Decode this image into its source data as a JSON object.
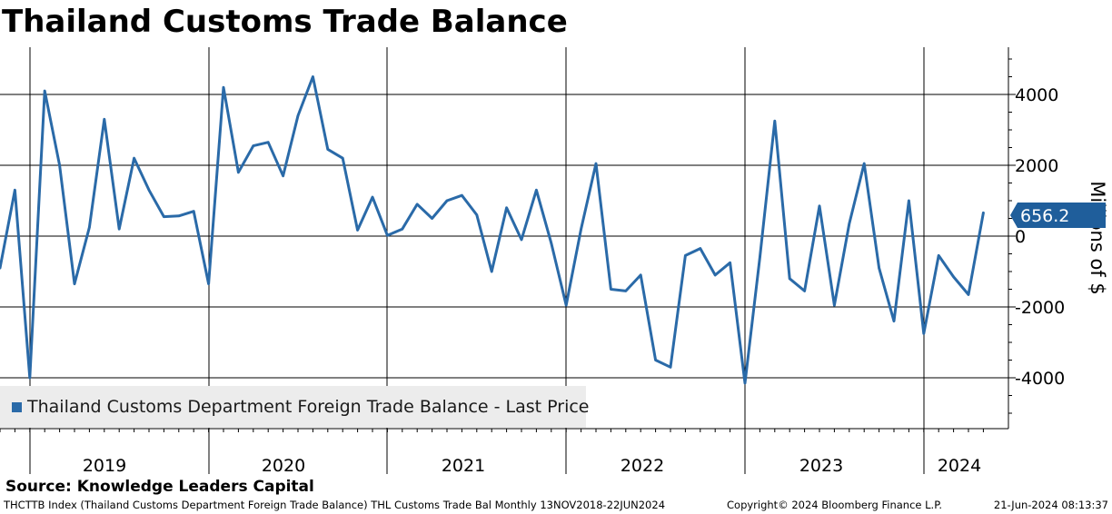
{
  "chart_data": {
    "type": "line",
    "title": "Thailand Customs Trade Balance",
    "ylabel": "Millions of $",
    "ylim": [
      -5400,
      5300
    ],
    "yticks": [
      -4000,
      -2000,
      0,
      2000,
      4000
    ],
    "ytick_labels": [
      "-4000",
      "-2000",
      "0",
      "2000",
      "4000"
    ],
    "year_labels": [
      "2019",
      "2020",
      "2021",
      "2022",
      "2023",
      "2024"
    ],
    "grid": true,
    "legend_position": "bottom-left",
    "series": [
      {
        "name": "Thailand Customs Department Foreign Trade Balance - Last Price",
        "color": "#2a6aa8",
        "x": [
          "2018-11",
          "2018-12",
          "2019-01",
          "2019-02",
          "2019-03",
          "2019-04",
          "2019-05",
          "2019-06",
          "2019-07",
          "2019-08",
          "2019-09",
          "2019-10",
          "2019-11",
          "2019-12",
          "2020-01",
          "2020-02",
          "2020-03",
          "2020-04",
          "2020-05",
          "2020-06",
          "2020-07",
          "2020-08",
          "2020-09",
          "2020-10",
          "2020-11",
          "2020-12",
          "2021-01",
          "2021-02",
          "2021-03",
          "2021-04",
          "2021-05",
          "2021-06",
          "2021-07",
          "2021-08",
          "2021-09",
          "2021-10",
          "2021-11",
          "2021-12",
          "2022-01",
          "2022-02",
          "2022-03",
          "2022-04",
          "2022-05",
          "2022-06",
          "2022-07",
          "2022-08",
          "2022-09",
          "2022-10",
          "2022-11",
          "2022-12",
          "2023-01",
          "2023-02",
          "2023-03",
          "2023-04",
          "2023-05",
          "2023-06",
          "2023-07",
          "2023-08",
          "2023-09",
          "2023-10",
          "2023-11",
          "2023-12",
          "2024-01",
          "2024-02",
          "2024-03",
          "2024-04",
          "2024-05"
        ],
        "values": [
          -900,
          1300,
          -4000,
          4100,
          2000,
          -1350,
          250,
          3300,
          200,
          2200,
          1300,
          550,
          570,
          700,
          -1350,
          4200,
          1800,
          2550,
          2650,
          1700,
          3400,
          4500,
          2450,
          2200,
          170,
          1100,
          20,
          200,
          900,
          500,
          1000,
          1150,
          600,
          -1000,
          800,
          -100,
          1300,
          -200,
          -1950,
          200,
          2050,
          -1500,
          -1550,
          -1100,
          -3500,
          -3700,
          -550,
          -350,
          -1100,
          -750,
          -4150,
          -600,
          3250,
          -1200,
          -1550,
          850,
          -1950,
          350,
          2050,
          -900,
          -2400,
          1000,
          -2750,
          -550,
          -1150,
          -1650,
          656.2
        ]
      }
    ],
    "last_value_label": "656.2"
  },
  "source": "Source: Knowledge Leaders Capital",
  "footer": {
    "description": "THCTTB Index (Thailand Customs Department Foreign Trade Balance) THL Customs Trade Bal  Monthly 13NOV2018-22JUN2024",
    "copyright": "Copyright© 2024 Bloomberg Finance L.P.",
    "timestamp": "21-Jun-2024 08:13:37"
  }
}
